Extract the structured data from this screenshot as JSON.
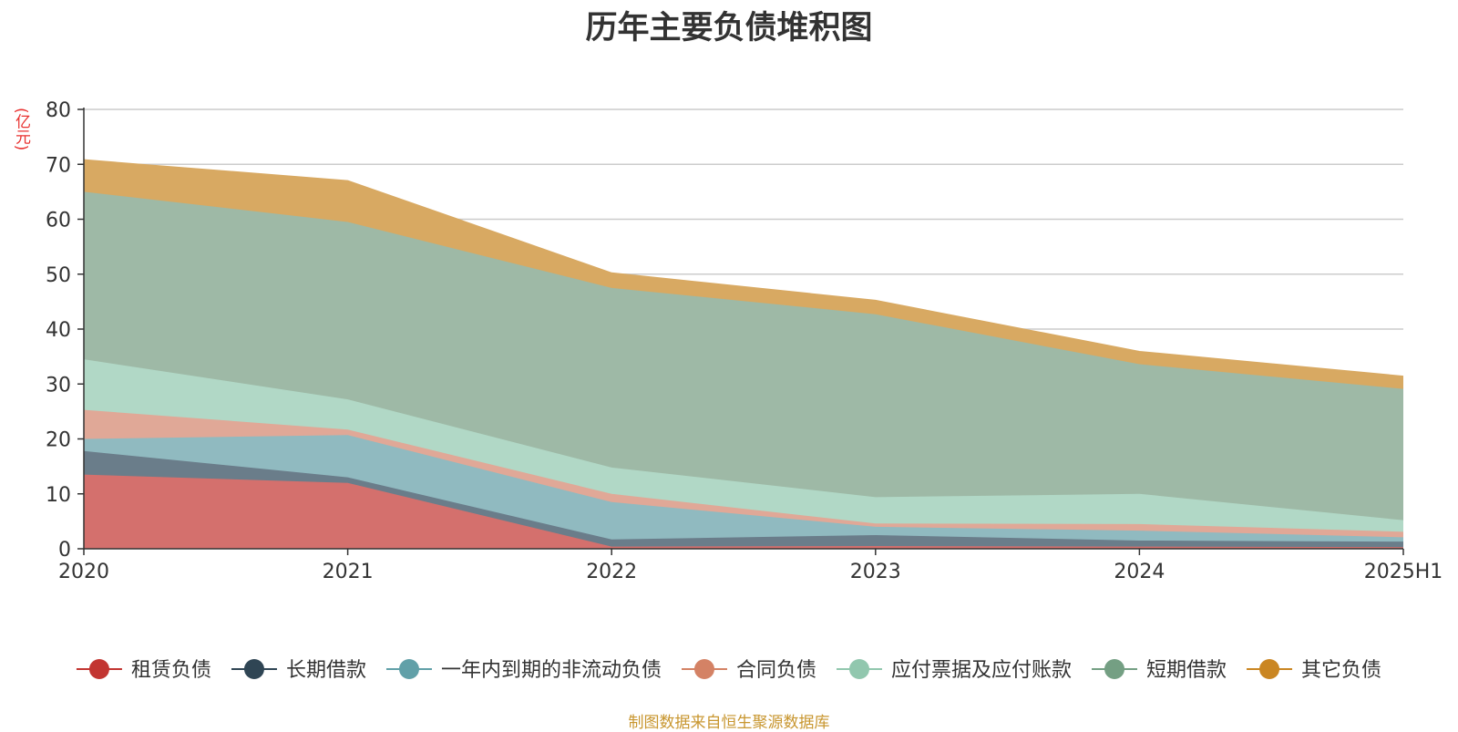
{
  "chart_data": {
    "type": "area",
    "stacked": true,
    "title": "历年主要负债堆积图",
    "unit": "(亿元)",
    "x": [
      "2020",
      "2021",
      "2022",
      "2023",
      "2024",
      "2025H1"
    ],
    "ylim": [
      0,
      80
    ],
    "yticks": [
      0,
      10,
      20,
      30,
      40,
      50,
      60,
      70,
      80
    ],
    "grid": true,
    "legend_position": "bottom",
    "series": [
      {
        "name": "租赁负债",
        "color": "#c23531",
        "fill": "#d4706d",
        "values": [
          13.5,
          12.0,
          0.4,
          0.5,
          0.4,
          0.3
        ]
      },
      {
        "name": "长期借款",
        "color": "#2f4554",
        "fill": "#6a7d8a",
        "values": [
          4.3,
          1.0,
          1.3,
          2.0,
          1.1,
          1.0
        ]
      },
      {
        "name": "一年内到期的非流动负债",
        "color": "#61a0a8",
        "fill": "#90bac0",
        "values": [
          2.2,
          7.7,
          6.8,
          1.5,
          1.8,
          0.8
        ]
      },
      {
        "name": "合同负债",
        "color": "#d48265",
        "fill": "#e0a897",
        "values": [
          5.3,
          1.0,
          1.5,
          0.6,
          1.2,
          1.0
        ]
      },
      {
        "name": "应付票据及应付账款",
        "color": "#91c7ae",
        "fill": "#b1d8c6",
        "values": [
          9.2,
          5.5,
          4.8,
          4.8,
          5.5,
          2.1
        ]
      },
      {
        "name": "短期借款",
        "color": "#749f83",
        "fill": "#9eb9a6",
        "values": [
          30.5,
          32.3,
          32.7,
          33.3,
          23.6,
          23.9
        ]
      },
      {
        "name": "其它负债",
        "color": "#ca8622",
        "fill": "#d8a962",
        "values": [
          5.8,
          7.5,
          2.7,
          2.5,
          2.3,
          2.3
        ]
      }
    ]
  },
  "source_note": "制图数据来自恒生聚源数据库"
}
